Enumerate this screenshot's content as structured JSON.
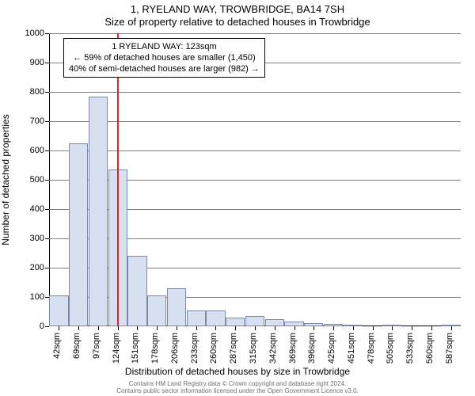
{
  "title_line1": "1, RYELAND WAY, TROWBRIDGE, BA14 7SH",
  "title_line2": "Size of property relative to detached houses in Trowbridge",
  "chart": {
    "type": "histogram",
    "ylim": [
      0,
      1000
    ],
    "yticks": [
      0,
      100,
      200,
      300,
      400,
      500,
      600,
      700,
      800,
      900,
      1000
    ],
    "y_axis_title": "Number of detached properties",
    "x_axis_title": "Distribution of detached houses by size in Trowbridge",
    "xtick_labels": [
      "42sqm",
      "69sqm",
      "97sqm",
      "124sqm",
      "151sqm",
      "178sqm",
      "206sqm",
      "233sqm",
      "260sqm",
      "287sqm",
      "315sqm",
      "342sqm",
      "369sqm",
      "396sqm",
      "425sqm",
      "451sqm",
      "478sqm",
      "505sqm",
      "533sqm",
      "560sqm",
      "587sqm"
    ],
    "bar_values": [
      105,
      625,
      785,
      535,
      240,
      105,
      130,
      55,
      55,
      30,
      35,
      25,
      15,
      12,
      8,
      5,
      0,
      6,
      0,
      0,
      5
    ],
    "bar_fill": "#d6e0f0",
    "bar_border": "#7a8aa8",
    "grid_color": "#808080",
    "marker_x_sqm": 123,
    "marker_color": "#d62728",
    "annotation": {
      "line1": "1 RYELAND WAY: 123sqm",
      "line2": "← 59% of detached houses are smaller (1,450)",
      "line3": "40% of semi-detached houses are larger (982) →"
    },
    "background_color": "#ffffff"
  },
  "footer_line1": "Contains HM Land Registry data © Crown copyright and database right 2024.",
  "footer_line2": "Contains public sector information licensed under the Open Government Licence v3.0."
}
